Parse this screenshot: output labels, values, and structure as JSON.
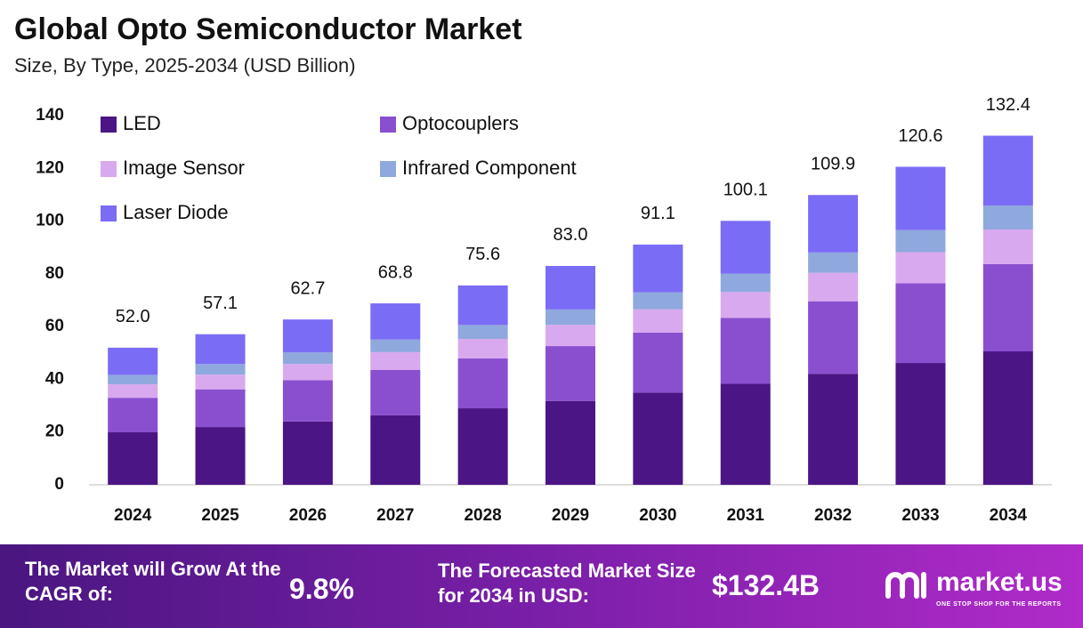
{
  "chart_data": {
    "type": "stacked-bar",
    "title": "Global Opto Semiconductor Market",
    "subtitle": "Size, By Type, 2025-2034 (USD Billion)",
    "categories": [
      "2024",
      "2025",
      "2026",
      "2027",
      "2028",
      "2029",
      "2030",
      "2031",
      "2032",
      "2033",
      "2034"
    ],
    "series": [
      {
        "name": "LED",
        "color": "#4b1585",
        "values": [
          19.9,
          21.9,
          24.0,
          26.4,
          29.0,
          31.8,
          34.9,
          38.3,
          42.1,
          46.2,
          50.6
        ]
      },
      {
        "name": "Optocouplers",
        "color": "#8a4fcf",
        "values": [
          13.1,
          14.3,
          15.7,
          17.2,
          18.9,
          20.8,
          22.8,
          25.0,
          27.5,
          30.2,
          33.1
        ]
      },
      {
        "name": "Image Sensor",
        "color": "#d9a9ef",
        "values": [
          5.1,
          5.6,
          6.1,
          6.7,
          7.4,
          8.1,
          8.9,
          9.8,
          10.8,
          11.8,
          13.1
        ]
      },
      {
        "name": "Infrared Component",
        "color": "#8fa8de",
        "values": [
          3.6,
          4.0,
          4.4,
          4.8,
          5.3,
          5.8,
          6.4,
          7.0,
          7.7,
          8.4,
          9.1
        ]
      },
      {
        "name": "Laser Diode",
        "color": "#7b6cf6",
        "values": [
          10.3,
          11.3,
          12.5,
          13.7,
          15.0,
          16.5,
          18.1,
          20.0,
          21.8,
          24.0,
          26.5
        ]
      }
    ],
    "totals": [
      52.0,
      57.1,
      62.7,
      68.8,
      75.6,
      83.0,
      91.1,
      100.1,
      109.9,
      120.6,
      132.4
    ],
    "total_labels": [
      "52.0",
      "57.1",
      "62.7",
      "68.8",
      "75.6",
      "83.0",
      "91.1",
      "100.1",
      "109.9",
      "120.6",
      "132.4"
    ],
    "ylim": [
      0,
      140
    ],
    "yticks": [
      0,
      20,
      40,
      60,
      80,
      100,
      120,
      140
    ],
    "grid": false
  },
  "footer": {
    "cagr_text": "The Market will Grow At the CAGR of:",
    "cagr_value": "9.8%",
    "forecast_text": "The Forecasted Market Size for 2034 in USD:",
    "forecast_value": "$132.4B",
    "logo": "market.us",
    "tagline": "ONE STOP SHOP FOR THE REPORTS"
  }
}
